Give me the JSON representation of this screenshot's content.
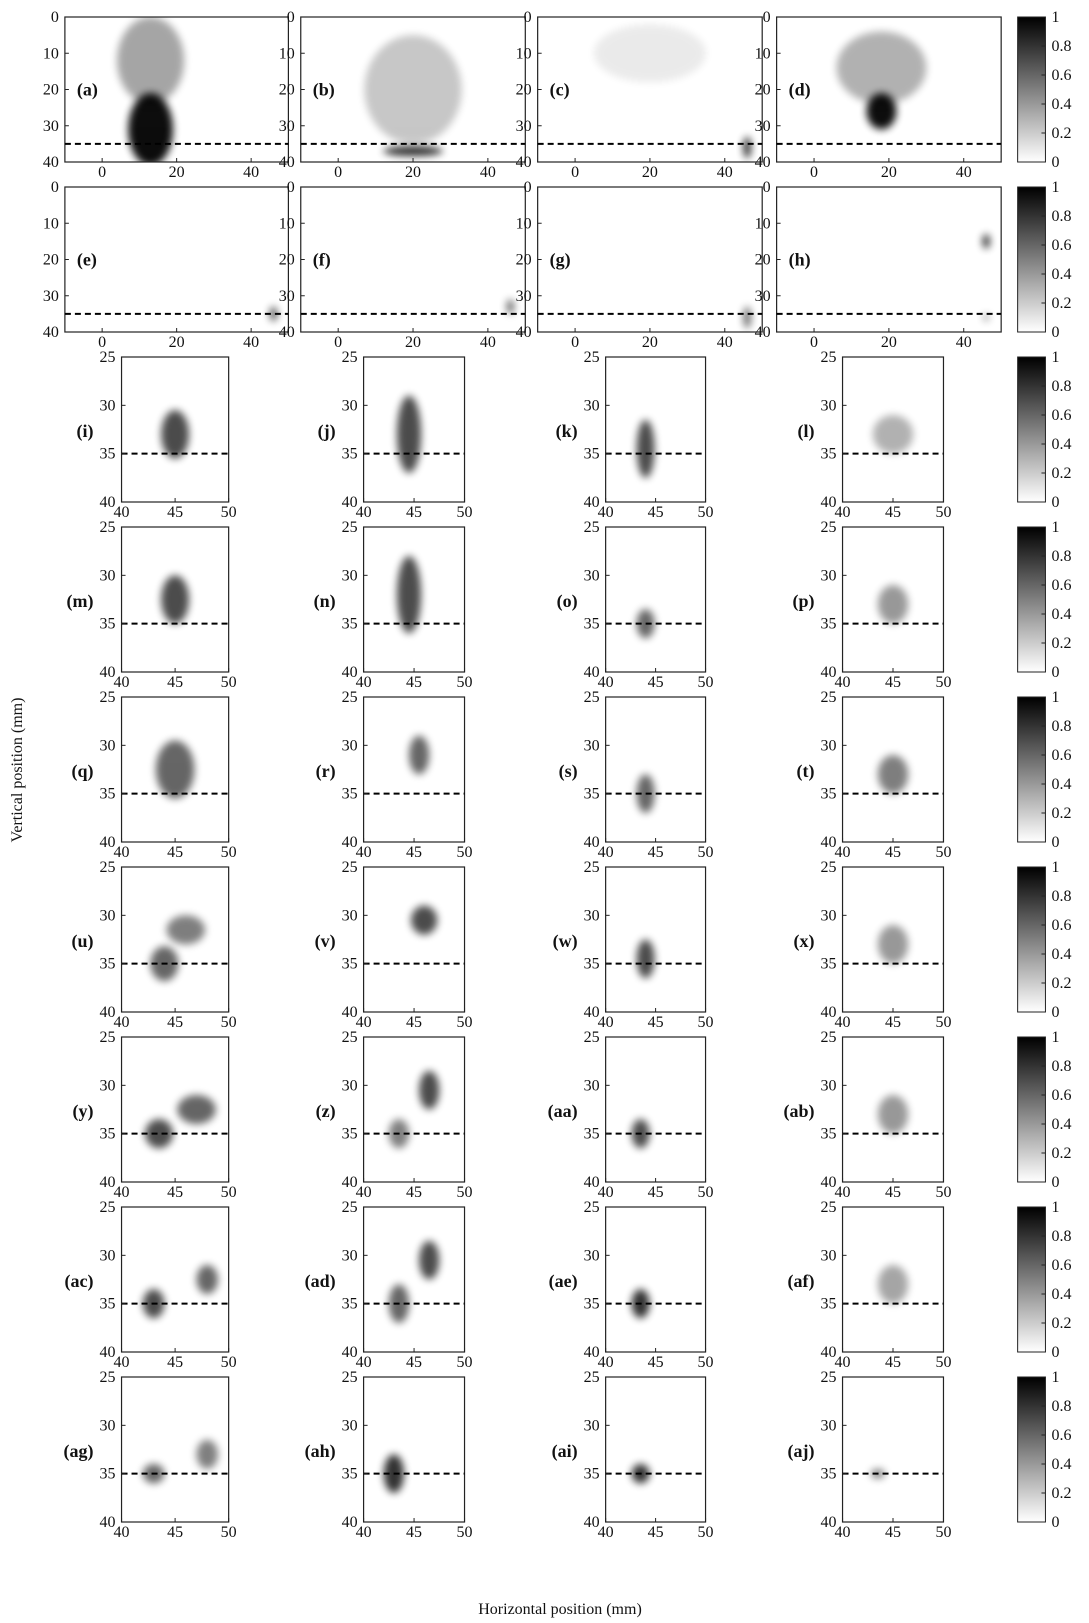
{
  "figure": {
    "xlabel": "Horizontal position (mm)",
    "ylabel": "Vertical position (mm)"
  },
  "chart_data": [
    {
      "type": "heatmap",
      "label": "(a)",
      "xlim": [
        -10,
        50
      ],
      "ylim": [
        40,
        0
      ],
      "xticks": [
        0,
        20,
        40
      ],
      "yticks": [
        0,
        10,
        20,
        30,
        40
      ],
      "hline": 35
    },
    {
      "type": "heatmap",
      "label": "(b)",
      "xlim": [
        -10,
        50
      ],
      "ylim": [
        40,
        0
      ],
      "xticks": [
        0,
        20,
        40
      ],
      "yticks": [
        0,
        10,
        20,
        30,
        40
      ],
      "hline": 35
    },
    {
      "type": "heatmap",
      "label": "(c)",
      "xlim": [
        -10,
        50
      ],
      "ylim": [
        40,
        0
      ],
      "xticks": [
        0,
        20,
        40
      ],
      "yticks": [
        0,
        10,
        20,
        30,
        40
      ],
      "hline": 35
    },
    {
      "type": "heatmap",
      "label": "(d)",
      "xlim": [
        -10,
        50
      ],
      "ylim": [
        40,
        0
      ],
      "xticks": [
        0,
        20,
        40
      ],
      "yticks": [
        0,
        10,
        20,
        30,
        40
      ],
      "hline": 35
    },
    {
      "type": "colorbar",
      "ylim": [
        0,
        1
      ],
      "yticks": [
        0,
        0.2,
        0.4,
        0.6,
        0.8,
        1
      ]
    },
    {
      "type": "heatmap",
      "label": "(e)",
      "xlim": [
        -10,
        50
      ],
      "ylim": [
        40,
        0
      ],
      "xticks": [
        0,
        20,
        40
      ],
      "yticks": [
        0,
        10,
        20,
        30,
        40
      ],
      "hline": 35
    },
    {
      "type": "heatmap",
      "label": "(f)",
      "xlim": [
        -10,
        50
      ],
      "ylim": [
        40,
        0
      ],
      "xticks": [
        0,
        20,
        40
      ],
      "yticks": [
        0,
        10,
        20,
        30,
        40
      ],
      "hline": 35
    },
    {
      "type": "heatmap",
      "label": "(g)",
      "xlim": [
        -10,
        50
      ],
      "ylim": [
        40,
        0
      ],
      "xticks": [
        0,
        20,
        40
      ],
      "yticks": [
        0,
        10,
        20,
        30,
        40
      ],
      "hline": 35
    },
    {
      "type": "heatmap",
      "label": "(h)",
      "xlim": [
        -10,
        50
      ],
      "ylim": [
        40,
        0
      ],
      "xticks": [
        0,
        20,
        40
      ],
      "yticks": [
        0,
        10,
        20,
        30,
        40
      ],
      "hline": 35
    },
    {
      "type": "colorbar",
      "ylim": [
        0,
        1
      ],
      "yticks": [
        0,
        0.2,
        0.4,
        0.6,
        0.8,
        1
      ]
    },
    {
      "type": "heatmap",
      "label": "(i)",
      "xlim": [
        40,
        50
      ],
      "ylim": [
        40,
        25
      ],
      "xticks": [
        40,
        45,
        50
      ],
      "yticks": [
        25,
        30,
        35,
        40
      ],
      "hline": 35
    },
    {
      "type": "heatmap",
      "label": "(j)",
      "xlim": [
        40,
        50
      ],
      "ylim": [
        40,
        25
      ],
      "xticks": [
        40,
        45,
        50
      ],
      "yticks": [
        25,
        30,
        35,
        40
      ],
      "hline": 35
    },
    {
      "type": "heatmap",
      "label": "(k)",
      "xlim": [
        40,
        50
      ],
      "ylim": [
        40,
        25
      ],
      "xticks": [
        40,
        45,
        50
      ],
      "yticks": [
        25,
        30,
        35,
        40
      ],
      "hline": 35
    },
    {
      "type": "heatmap",
      "label": "(l)",
      "xlim": [
        40,
        50
      ],
      "ylim": [
        40,
        25
      ],
      "xticks": [
        40,
        45,
        50
      ],
      "yticks": [
        25,
        30,
        35,
        40
      ],
      "hline": 35
    },
    {
      "type": "colorbar",
      "ylim": [
        0,
        1
      ],
      "yticks": [
        0,
        0.2,
        0.4,
        0.6,
        0.8,
        1
      ]
    },
    {
      "type": "heatmap",
      "label": "(m)",
      "xlim": [
        40,
        50
      ],
      "ylim": [
        40,
        25
      ],
      "xticks": [
        40,
        45,
        50
      ],
      "yticks": [
        25,
        30,
        35,
        40
      ],
      "hline": 35
    },
    {
      "type": "heatmap",
      "label": "(n)",
      "xlim": [
        40,
        50
      ],
      "ylim": [
        40,
        25
      ],
      "xticks": [
        40,
        45,
        50
      ],
      "yticks": [
        25,
        30,
        35,
        40
      ],
      "hline": 35
    },
    {
      "type": "heatmap",
      "label": "(o)",
      "xlim": [
        40,
        50
      ],
      "ylim": [
        40,
        25
      ],
      "xticks": [
        40,
        45,
        50
      ],
      "yticks": [
        25,
        30,
        35,
        40
      ],
      "hline": 35
    },
    {
      "type": "heatmap",
      "label": "(p)",
      "xlim": [
        40,
        50
      ],
      "ylim": [
        40,
        25
      ],
      "xticks": [
        40,
        45,
        50
      ],
      "yticks": [
        25,
        30,
        35,
        40
      ],
      "hline": 35
    },
    {
      "type": "colorbar",
      "ylim": [
        0,
        1
      ],
      "yticks": [
        0,
        0.2,
        0.4,
        0.6,
        0.8,
        1
      ]
    },
    {
      "type": "heatmap",
      "label": "(q)",
      "xlim": [
        40,
        50
      ],
      "ylim": [
        40,
        25
      ],
      "xticks": [
        40,
        45,
        50
      ],
      "yticks": [
        25,
        30,
        35,
        40
      ],
      "hline": 35
    },
    {
      "type": "heatmap",
      "label": "(r)",
      "xlim": [
        40,
        50
      ],
      "ylim": [
        40,
        25
      ],
      "xticks": [
        40,
        45,
        50
      ],
      "yticks": [
        25,
        30,
        35,
        40
      ],
      "hline": 35
    },
    {
      "type": "heatmap",
      "label": "(s)",
      "xlim": [
        40,
        50
      ],
      "ylim": [
        40,
        25
      ],
      "xticks": [
        40,
        45,
        50
      ],
      "yticks": [
        25,
        30,
        35,
        40
      ],
      "hline": 35
    },
    {
      "type": "heatmap",
      "label": "(t)",
      "xlim": [
        40,
        50
      ],
      "ylim": [
        40,
        25
      ],
      "xticks": [
        40,
        45,
        50
      ],
      "yticks": [
        25,
        30,
        35,
        40
      ],
      "hline": 35
    },
    {
      "type": "colorbar",
      "ylim": [
        0,
        1
      ],
      "yticks": [
        0,
        0.2,
        0.4,
        0.6,
        0.8,
        1
      ]
    },
    {
      "type": "heatmap",
      "label": "(u)",
      "xlim": [
        40,
        50
      ],
      "ylim": [
        40,
        25
      ],
      "xticks": [
        40,
        45,
        50
      ],
      "yticks": [
        25,
        30,
        35,
        40
      ],
      "hline": 35
    },
    {
      "type": "heatmap",
      "label": "(v)",
      "xlim": [
        40,
        50
      ],
      "ylim": [
        40,
        25
      ],
      "xticks": [
        40,
        45,
        50
      ],
      "yticks": [
        25,
        30,
        35,
        40
      ],
      "hline": 35
    },
    {
      "type": "heatmap",
      "label": "(w)",
      "xlim": [
        40,
        50
      ],
      "ylim": [
        40,
        25
      ],
      "xticks": [
        40,
        45,
        50
      ],
      "yticks": [
        25,
        30,
        35,
        40
      ],
      "hline": 35
    },
    {
      "type": "heatmap",
      "label": "(x)",
      "xlim": [
        40,
        50
      ],
      "ylim": [
        40,
        25
      ],
      "xticks": [
        40,
        45,
        50
      ],
      "yticks": [
        25,
        30,
        35,
        40
      ],
      "hline": 35
    },
    {
      "type": "colorbar",
      "ylim": [
        0,
        1
      ],
      "yticks": [
        0,
        0.2,
        0.4,
        0.6,
        0.8,
        1
      ]
    },
    {
      "type": "heatmap",
      "label": "(y)",
      "xlim": [
        40,
        50
      ],
      "ylim": [
        40,
        25
      ],
      "xticks": [
        40,
        45,
        50
      ],
      "yticks": [
        25,
        30,
        35,
        40
      ],
      "hline": 35
    },
    {
      "type": "heatmap",
      "label": "(z)",
      "xlim": [
        40,
        50
      ],
      "ylim": [
        40,
        25
      ],
      "xticks": [
        40,
        45,
        50
      ],
      "yticks": [
        25,
        30,
        35,
        40
      ],
      "hline": 35
    },
    {
      "type": "heatmap",
      "label": "(aa)",
      "xlim": [
        40,
        50
      ],
      "ylim": [
        40,
        25
      ],
      "xticks": [
        40,
        45,
        50
      ],
      "yticks": [
        25,
        30,
        35,
        40
      ],
      "hline": 35
    },
    {
      "type": "heatmap",
      "label": "(ab)",
      "xlim": [
        40,
        50
      ],
      "ylim": [
        40,
        25
      ],
      "xticks": [
        40,
        45,
        50
      ],
      "yticks": [
        25,
        30,
        35,
        40
      ],
      "hline": 35
    },
    {
      "type": "colorbar",
      "ylim": [
        0,
        1
      ],
      "yticks": [
        0,
        0.2,
        0.4,
        0.6,
        0.8,
        1
      ]
    },
    {
      "type": "heatmap",
      "label": "(ac)",
      "xlim": [
        40,
        50
      ],
      "ylim": [
        40,
        25
      ],
      "xticks": [
        40,
        45,
        50
      ],
      "yticks": [
        25,
        30,
        35,
        40
      ],
      "hline": 35
    },
    {
      "type": "heatmap",
      "label": "(ad)",
      "xlim": [
        40,
        50
      ],
      "ylim": [
        40,
        25
      ],
      "xticks": [
        40,
        45,
        50
      ],
      "yticks": [
        25,
        30,
        35,
        40
      ],
      "hline": 35
    },
    {
      "type": "heatmap",
      "label": "(ae)",
      "xlim": [
        40,
        50
      ],
      "ylim": [
        40,
        25
      ],
      "xticks": [
        40,
        45,
        50
      ],
      "yticks": [
        25,
        30,
        35,
        40
      ],
      "hline": 35
    },
    {
      "type": "heatmap",
      "label": "(af)",
      "xlim": [
        40,
        50
      ],
      "ylim": [
        40,
        25
      ],
      "xticks": [
        40,
        45,
        50
      ],
      "yticks": [
        25,
        30,
        35,
        40
      ],
      "hline": 35
    },
    {
      "type": "colorbar",
      "ylim": [
        0,
        1
      ],
      "yticks": [
        0,
        0.2,
        0.4,
        0.6,
        0.8,
        1
      ]
    },
    {
      "type": "heatmap",
      "label": "(ag)",
      "xlim": [
        40,
        50
      ],
      "ylim": [
        40,
        25
      ],
      "xticks": [
        40,
        45,
        50
      ],
      "yticks": [
        25,
        30,
        35,
        40
      ],
      "hline": 35
    },
    {
      "type": "heatmap",
      "label": "(ah)",
      "xlim": [
        40,
        50
      ],
      "ylim": [
        40,
        25
      ],
      "xticks": [
        40,
        45,
        50
      ],
      "yticks": [
        25,
        30,
        35,
        40
      ],
      "hline": 35
    },
    {
      "type": "heatmap",
      "label": "(ai)",
      "xlim": [
        40,
        50
      ],
      "ylim": [
        40,
        25
      ],
      "xticks": [
        40,
        45,
        50
      ],
      "yticks": [
        25,
        30,
        35,
        40
      ],
      "hline": 35
    },
    {
      "type": "heatmap",
      "label": "(aj)",
      "xlim": [
        40,
        50
      ],
      "ylim": [
        40,
        25
      ],
      "xticks": [
        40,
        45,
        50
      ],
      "yticks": [
        25,
        30,
        35,
        40
      ],
      "hline": 35
    },
    {
      "type": "colorbar",
      "ylim": [
        0,
        1
      ],
      "yticks": [
        0,
        0.2,
        0.4,
        0.6,
        0.8,
        1
      ]
    }
  ]
}
